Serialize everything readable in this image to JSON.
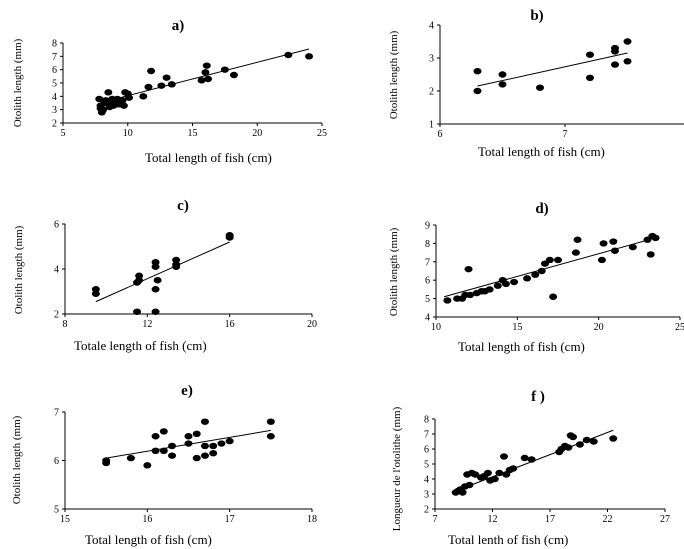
{
  "chart_data": [
    {
      "panel": "a)",
      "type": "scatter",
      "xlabel": "Total length of fish (cm)",
      "ylabel": "Otolith length (mm)",
      "xlim": [
        5,
        25
      ],
      "ylim": [
        2,
        8
      ],
      "xticks": [
        "5",
        "10",
        "15",
        "20",
        "25"
      ],
      "yticks": [
        "2",
        "3",
        "4",
        "5",
        "6",
        "7",
        "8"
      ],
      "points": [
        [
          7.8,
          3.8
        ],
        [
          7.9,
          3.3
        ],
        [
          7.9,
          3.1
        ],
        [
          8.0,
          2.8
        ],
        [
          8.1,
          3.0
        ],
        [
          8.2,
          3.5
        ],
        [
          8.3,
          3.7
        ],
        [
          8.4,
          3.6
        ],
        [
          8.5,
          4.3
        ],
        [
          8.6,
          3.2
        ],
        [
          8.7,
          3.5
        ],
        [
          8.8,
          3.8
        ],
        [
          8.9,
          3.3
        ],
        [
          9.0,
          3.6
        ],
        [
          9.2,
          3.8
        ],
        [
          9.3,
          3.4
        ],
        [
          9.5,
          3.5
        ],
        [
          9.6,
          3.7
        ],
        [
          9.7,
          3.3
        ],
        [
          9.8,
          4.3
        ],
        [
          10.0,
          4.2
        ],
        [
          10.1,
          3.9
        ],
        [
          11.2,
          4.0
        ],
        [
          11.6,
          4.7
        ],
        [
          11.8,
          5.9
        ],
        [
          12.6,
          4.8
        ],
        [
          13.0,
          5.4
        ],
        [
          13.4,
          4.9
        ],
        [
          15.7,
          5.2
        ],
        [
          16.0,
          5.8
        ],
        [
          16.1,
          6.3
        ],
        [
          16.2,
          5.3
        ],
        [
          17.5,
          6.0
        ],
        [
          18.2,
          5.6
        ],
        [
          22.4,
          7.1
        ],
        [
          24.0,
          7.0
        ]
      ],
      "trendline": [
        [
          8,
          3.55
        ],
        [
          24,
          7.55
        ]
      ]
    },
    {
      "panel": "b)",
      "type": "scatter",
      "xlabel": "Total length of fish (cm)",
      "ylabel": "Otolith length (mm)",
      "xlim": [
        6,
        8
      ],
      "ylim": [
        1,
        4
      ],
      "xticks": [
        "6",
        "7"
      ],
      "yticks": [
        "1",
        "2",
        "3",
        "4"
      ],
      "points": [
        [
          6.3,
          2.0
        ],
        [
          6.3,
          2.6
        ],
        [
          6.5,
          2.2
        ],
        [
          6.5,
          2.5
        ],
        [
          6.8,
          2.1
        ],
        [
          7.2,
          2.4
        ],
        [
          7.2,
          3.1
        ],
        [
          7.4,
          3.2
        ],
        [
          7.4,
          3.3
        ],
        [
          7.4,
          2.8
        ],
        [
          7.5,
          3.5
        ],
        [
          7.5,
          2.9
        ]
      ],
      "trendline": [
        [
          6.3,
          2.15
        ],
        [
          7.5,
          3.15
        ]
      ]
    },
    {
      "panel": "c)",
      "type": "scatter",
      "xlabel": "Totale length of fish (cm)",
      "ylabel": "Otolith length (mm)",
      "xlim": [
        8,
        20
      ],
      "ylim": [
        2,
        6
      ],
      "xticks": [
        "8",
        "12",
        "16",
        "20"
      ],
      "yticks": [
        "2",
        "4",
        "6"
      ],
      "points": [
        [
          9.5,
          3.1
        ],
        [
          9.5,
          2.9
        ],
        [
          11.5,
          3.4
        ],
        [
          11.6,
          3.5
        ],
        [
          11.6,
          3.7
        ],
        [
          11.5,
          2.1
        ],
        [
          12.4,
          4.3
        ],
        [
          12.4,
          4.1
        ],
        [
          12.5,
          3.5
        ],
        [
          12.4,
          3.1
        ],
        [
          12.4,
          2.1
        ],
        [
          13.4,
          4.4
        ],
        [
          13.4,
          4.2
        ],
        [
          13.4,
          4.1
        ],
        [
          16.0,
          5.5
        ],
        [
          16.0,
          5.4
        ]
      ],
      "trendline": [
        [
          9.5,
          2.55
        ],
        [
          16,
          5.2
        ]
      ]
    },
    {
      "panel": "d)",
      "type": "scatter",
      "xlabel": "Total length of fish (cm)",
      "ylabel": "Otolith length (mm)",
      "xlim": [
        10,
        25
      ],
      "ylim": [
        4,
        9
      ],
      "xticks": [
        "10",
        "15",
        "20",
        "25"
      ],
      "yticks": [
        "4",
        "5",
        "6",
        "7",
        "8",
        "9"
      ],
      "points": [
        [
          10.7,
          4.9
        ],
        [
          11.3,
          5.0
        ],
        [
          11.6,
          5.0
        ],
        [
          11.8,
          5.2
        ],
        [
          12.0,
          6.6
        ],
        [
          12.1,
          5.2
        ],
        [
          12.5,
          5.3
        ],
        [
          12.8,
          5.4
        ],
        [
          13.0,
          5.4
        ],
        [
          13.3,
          5.5
        ],
        [
          13.8,
          5.7
        ],
        [
          14.1,
          6.0
        ],
        [
          14.3,
          5.8
        ],
        [
          14.8,
          5.9
        ],
        [
          15.6,
          6.1
        ],
        [
          16.1,
          6.3
        ],
        [
          16.5,
          6.5
        ],
        [
          16.7,
          6.9
        ],
        [
          17.0,
          7.1
        ],
        [
          17.2,
          5.1
        ],
        [
          17.5,
          7.1
        ],
        [
          18.6,
          7.5
        ],
        [
          18.7,
          8.2
        ],
        [
          20.2,
          7.1
        ],
        [
          20.3,
          8.0
        ],
        [
          20.9,
          8.1
        ],
        [
          21.0,
          7.6
        ],
        [
          22.1,
          7.8
        ],
        [
          23.0,
          8.2
        ],
        [
          23.2,
          7.4
        ],
        [
          23.3,
          8.4
        ],
        [
          23.5,
          8.3
        ]
      ],
      "trendline": [
        [
          10.5,
          5.1
        ],
        [
          23.5,
          8.3
        ]
      ]
    },
    {
      "panel": "e)",
      "type": "scatter",
      "xlabel": "Total length of fish (cm)",
      "ylabel": "Otolith length (mm)",
      "xlim": [
        15,
        18
      ],
      "ylim": [
        5,
        7
      ],
      "xticks": [
        "15",
        "16",
        "17",
        "18"
      ],
      "yticks": [
        "5",
        "6",
        "7"
      ],
      "points": [
        [
          15.5,
          6.0
        ],
        [
          15.5,
          5.95
        ],
        [
          15.8,
          6.05
        ],
        [
          16.0,
          5.9
        ],
        [
          16.1,
          6.2
        ],
        [
          16.1,
          6.5
        ],
        [
          16.2,
          6.2
        ],
        [
          16.2,
          6.6
        ],
        [
          16.3,
          6.3
        ],
        [
          16.3,
          6.1
        ],
        [
          16.5,
          6.35
        ],
        [
          16.5,
          6.5
        ],
        [
          16.6,
          6.05
        ],
        [
          16.6,
          6.55
        ],
        [
          16.7,
          6.3
        ],
        [
          16.7,
          6.1
        ],
        [
          16.7,
          6.8
        ],
        [
          16.8,
          6.3
        ],
        [
          16.8,
          6.15
        ],
        [
          16.9,
          6.35
        ],
        [
          17.0,
          6.4
        ],
        [
          17.5,
          6.8
        ],
        [
          17.5,
          6.5
        ]
      ],
      "trendline": [
        [
          15.5,
          6.05
        ],
        [
          17.5,
          6.62
        ]
      ]
    },
    {
      "panel": "f )",
      "type": "scatter",
      "xlabel": "Total lenth of fish (cm)",
      "ylabel": "Longueur de l'otolithe (mm)",
      "xlim": [
        7,
        27
      ],
      "ylim": [
        2,
        8
      ],
      "xticks": [
        "7",
        "12",
        "17",
        "22",
        "27"
      ],
      "yticks": [
        "2",
        "3",
        "4",
        "5",
        "6",
        "7",
        "8"
      ],
      "points": [
        [
          8.8,
          3.1
        ],
        [
          9.0,
          3.2
        ],
        [
          9.2,
          3.3
        ],
        [
          9.4,
          3.1
        ],
        [
          9.6,
          3.5
        ],
        [
          9.8,
          4.3
        ],
        [
          10.0,
          3.6
        ],
        [
          10.2,
          4.4
        ],
        [
          10.5,
          4.3
        ],
        [
          11.0,
          4.1
        ],
        [
          11.3,
          4.2
        ],
        [
          11.6,
          4.4
        ],
        [
          11.8,
          3.9
        ],
        [
          12.2,
          4.0
        ],
        [
          12.6,
          4.4
        ],
        [
          13.0,
          5.5
        ],
        [
          13.2,
          4.3
        ],
        [
          13.5,
          4.6
        ],
        [
          13.8,
          4.7
        ],
        [
          14.8,
          5.4
        ],
        [
          15.4,
          5.3
        ],
        [
          17.8,
          5.8
        ],
        [
          18.0,
          6.0
        ],
        [
          18.3,
          6.2
        ],
        [
          18.6,
          6.1
        ],
        [
          18.8,
          6.9
        ],
        [
          19.0,
          6.8
        ],
        [
          19.6,
          6.3
        ],
        [
          20.2,
          6.6
        ],
        [
          20.8,
          6.5
        ],
        [
          22.5,
          6.7
        ]
      ],
      "trendline": [
        [
          8.8,
          3.2
        ],
        [
          22.5,
          7.25
        ]
      ]
    }
  ]
}
